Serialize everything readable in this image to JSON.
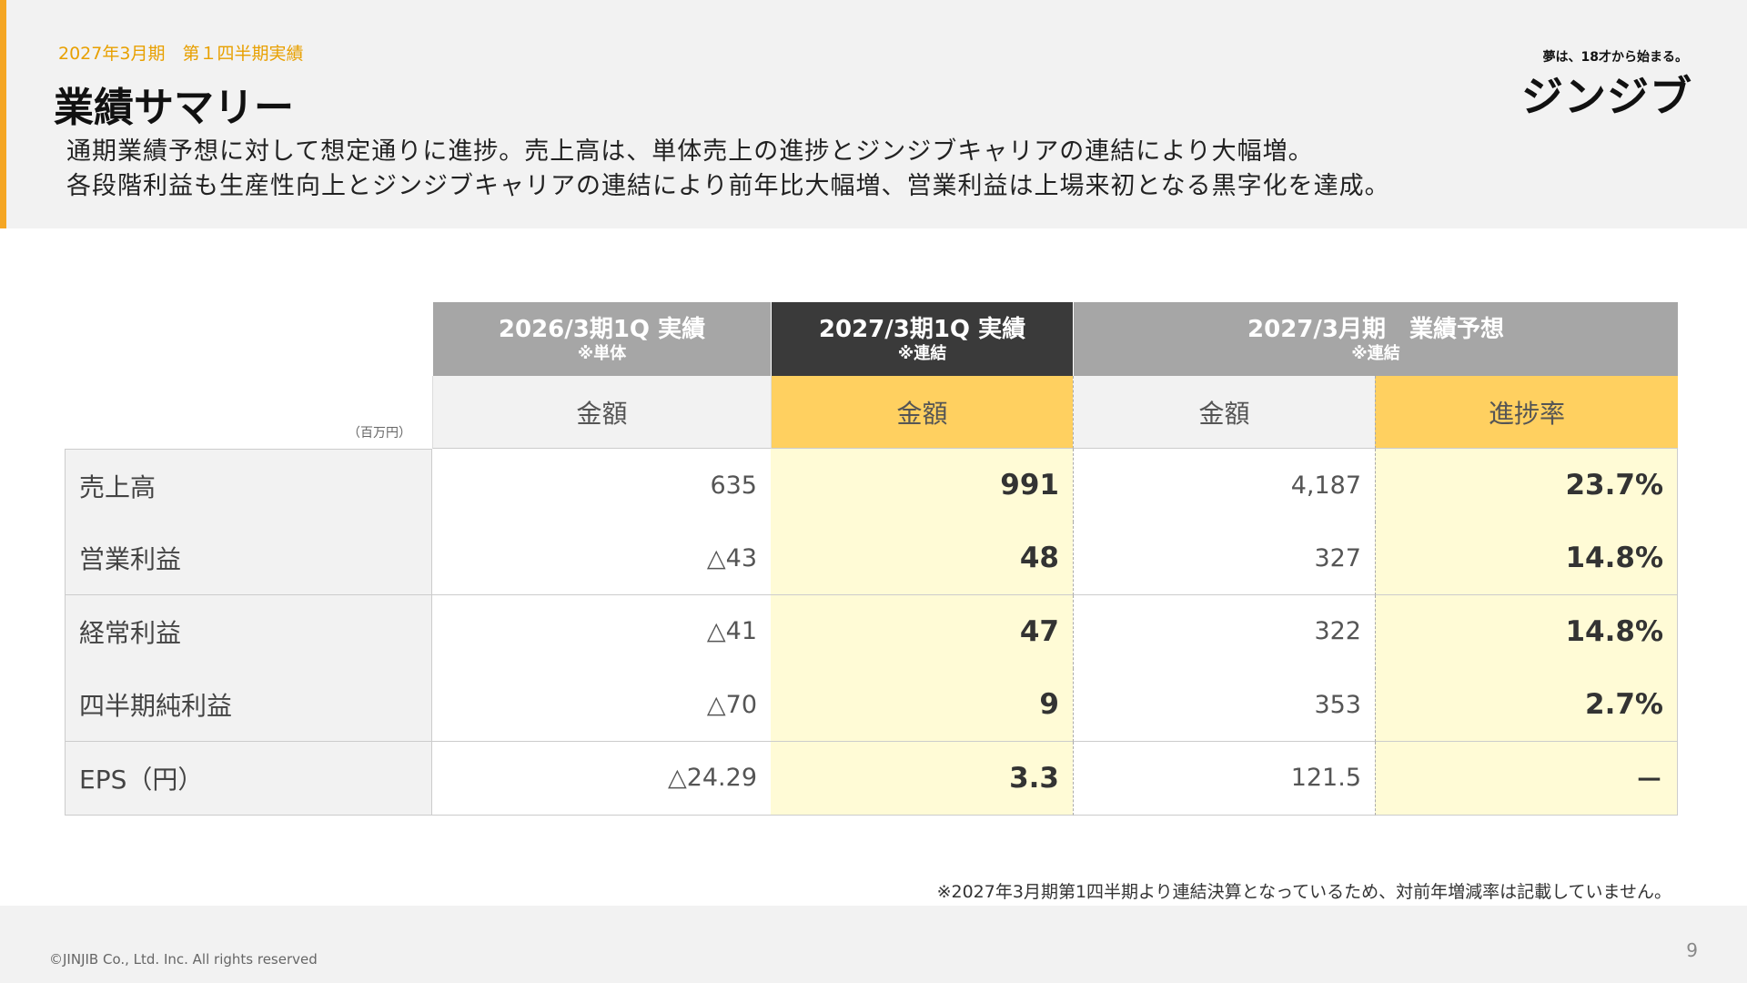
{
  "header": {
    "subtitle": "2027年3月期　第１四半期実績",
    "title": "業績サマリー",
    "logo_tagline": "夢は、18才から始まる。",
    "logo": "ジンジブ",
    "lead": [
      "通期業績予想に対して想定通りに進捗。売上高は、単体売上の進捗とジンジブキャリアの連結により大幅増。",
      "各段階利益も生産性向上とジンジブキャリアの連結により前年比大幅増、営業利益は上場来初となる黒字化を達成。"
    ]
  },
  "table": {
    "unit": "（百万円）",
    "groups": [
      {
        "title": "2026/3期1Q 実績",
        "note": "※単体"
      },
      {
        "title": "2027/3期1Q 実績",
        "note": "※連結"
      },
      {
        "title": "2027/3月期　業績予想",
        "note": "※連結"
      }
    ],
    "columns": [
      "金額",
      "金額",
      "金額",
      "進捗率"
    ],
    "rows": [
      [
        "売上高",
        "635",
        "991",
        "4,187",
        "23.7%"
      ],
      [
        "営業利益",
        "△43",
        "48",
        "327",
        "14.8%"
      ],
      [
        "経常利益",
        "△41",
        "47",
        "322",
        "14.8%"
      ],
      [
        "四半期純利益",
        "△70",
        "9",
        "353",
        "2.7%"
      ],
      [
        "EPS（円）",
        "△24.29",
        "3.3",
        "121.5",
        "－"
      ]
    ]
  },
  "footnote": "※2027年3月期第1四半期より連結決算となっているため、対前年増減率は記載していません。",
  "footer": {
    "copyright": "©JINJIB Co., Ltd. Inc. All rights reserved",
    "page": "9"
  }
}
